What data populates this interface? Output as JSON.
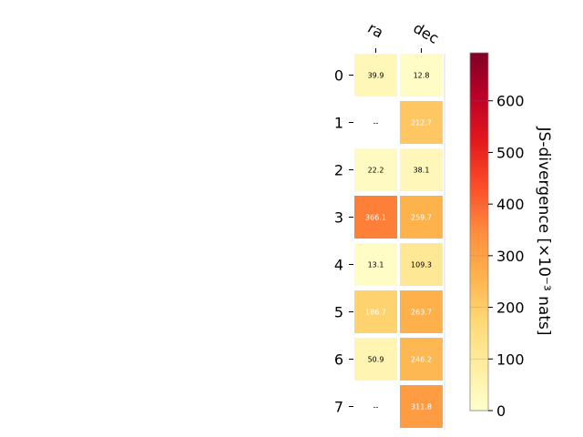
{
  "chart_data": {
    "type": "heatmap",
    "columns": [
      "ra",
      "dec"
    ],
    "rows": [
      "0",
      "1",
      "2",
      "3",
      "4",
      "5",
      "6",
      "7"
    ],
    "values": [
      [
        39.9,
        12.8
      ],
      [
        null,
        212.7
      ],
      [
        22.2,
        38.1
      ],
      [
        366.1,
        259.7
      ],
      [
        13.1,
        109.3
      ],
      [
        186.7,
        263.7
      ],
      [
        50.9,
        246.2
      ],
      [
        null,
        311.8
      ]
    ],
    "cell_labels": [
      [
        "39.9",
        "12.8"
      ],
      [
        "--",
        "212.7"
      ],
      [
        "22.2",
        "38.1"
      ],
      [
        "366.1",
        "259.7"
      ],
      [
        "13.1",
        "109.3"
      ],
      [
        "186.7",
        "263.7"
      ],
      [
        "50.9",
        "246.2"
      ],
      [
        "--",
        "311.8"
      ]
    ],
    "colorbar": {
      "label": "JS-divergence [×10⁻³ nats]",
      "range": [
        0,
        693
      ],
      "ticks": [
        "0",
        "100",
        "200",
        "300",
        "400",
        "500",
        "600"
      ],
      "tick_values": [
        0,
        100,
        200,
        300,
        400,
        500,
        600
      ],
      "colormap": "YlOrRd"
    },
    "colors": {
      "colormap_stops": [
        "#ffffcc",
        "#ffeda0",
        "#fed976",
        "#feb24c",
        "#fd8d3c",
        "#fc4e2a",
        "#e31a1c",
        "#bd0026",
        "#800026"
      ],
      "light_text": "#ffffff",
      "dark_text": "#000000"
    }
  }
}
